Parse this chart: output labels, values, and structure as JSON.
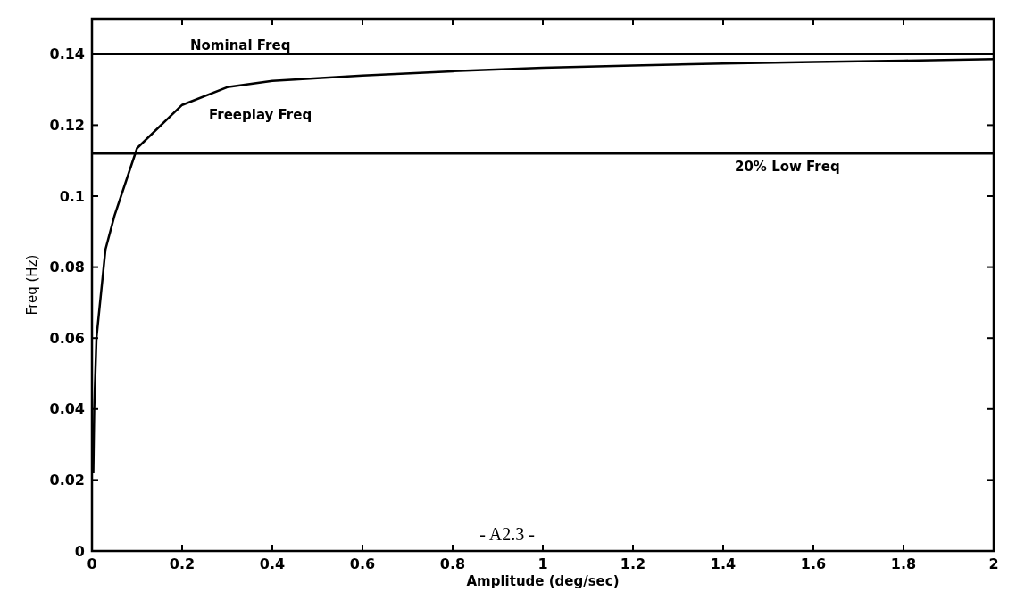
{
  "chart_data": {
    "type": "line",
    "xlabel": "Amplitude (deg/sec)",
    "ylabel": "Freq (Hz)",
    "x": [
      0.003,
      0.005,
      0.01,
      0.03,
      0.05,
      0.1,
      0.2,
      0.3,
      0.4,
      0.6,
      0.8,
      1.0,
      1.2,
      1.4,
      1.6,
      1.8,
      2.0
    ],
    "series": [
      {
        "name": "Freeplay Freq",
        "color": "#000000",
        "values": [
          0.022,
          0.04,
          0.06,
          0.085,
          0.0945,
          0.1135,
          0.1257,
          0.1307,
          0.1325,
          0.134,
          0.1352,
          0.1362,
          0.1368,
          0.1374,
          0.1378,
          0.1382,
          0.1386
        ]
      }
    ],
    "xlim": [
      0,
      2
    ],
    "xticks": [
      0,
      0.2,
      0.4,
      0.6,
      0.8,
      1,
      1.2,
      1.4,
      1.6,
      1.8,
      2
    ],
    "ylim": [
      0,
      0.15
    ],
    "yticks": [
      0,
      0.02,
      0.04,
      0.06,
      0.08,
      0.1,
      0.12,
      0.14
    ],
    "ref_lines": [
      {
        "axis": "y",
        "value": 0.14,
        "label": "Nominal Freq",
        "color": "#000000"
      },
      {
        "axis": "y",
        "value": 0.112,
        "label": "20% Low Freq",
        "color": "#000000"
      }
    ],
    "annotations": [
      "- A2.3 -"
    ],
    "grid": false,
    "marker": "none",
    "line_style": "solid"
  }
}
